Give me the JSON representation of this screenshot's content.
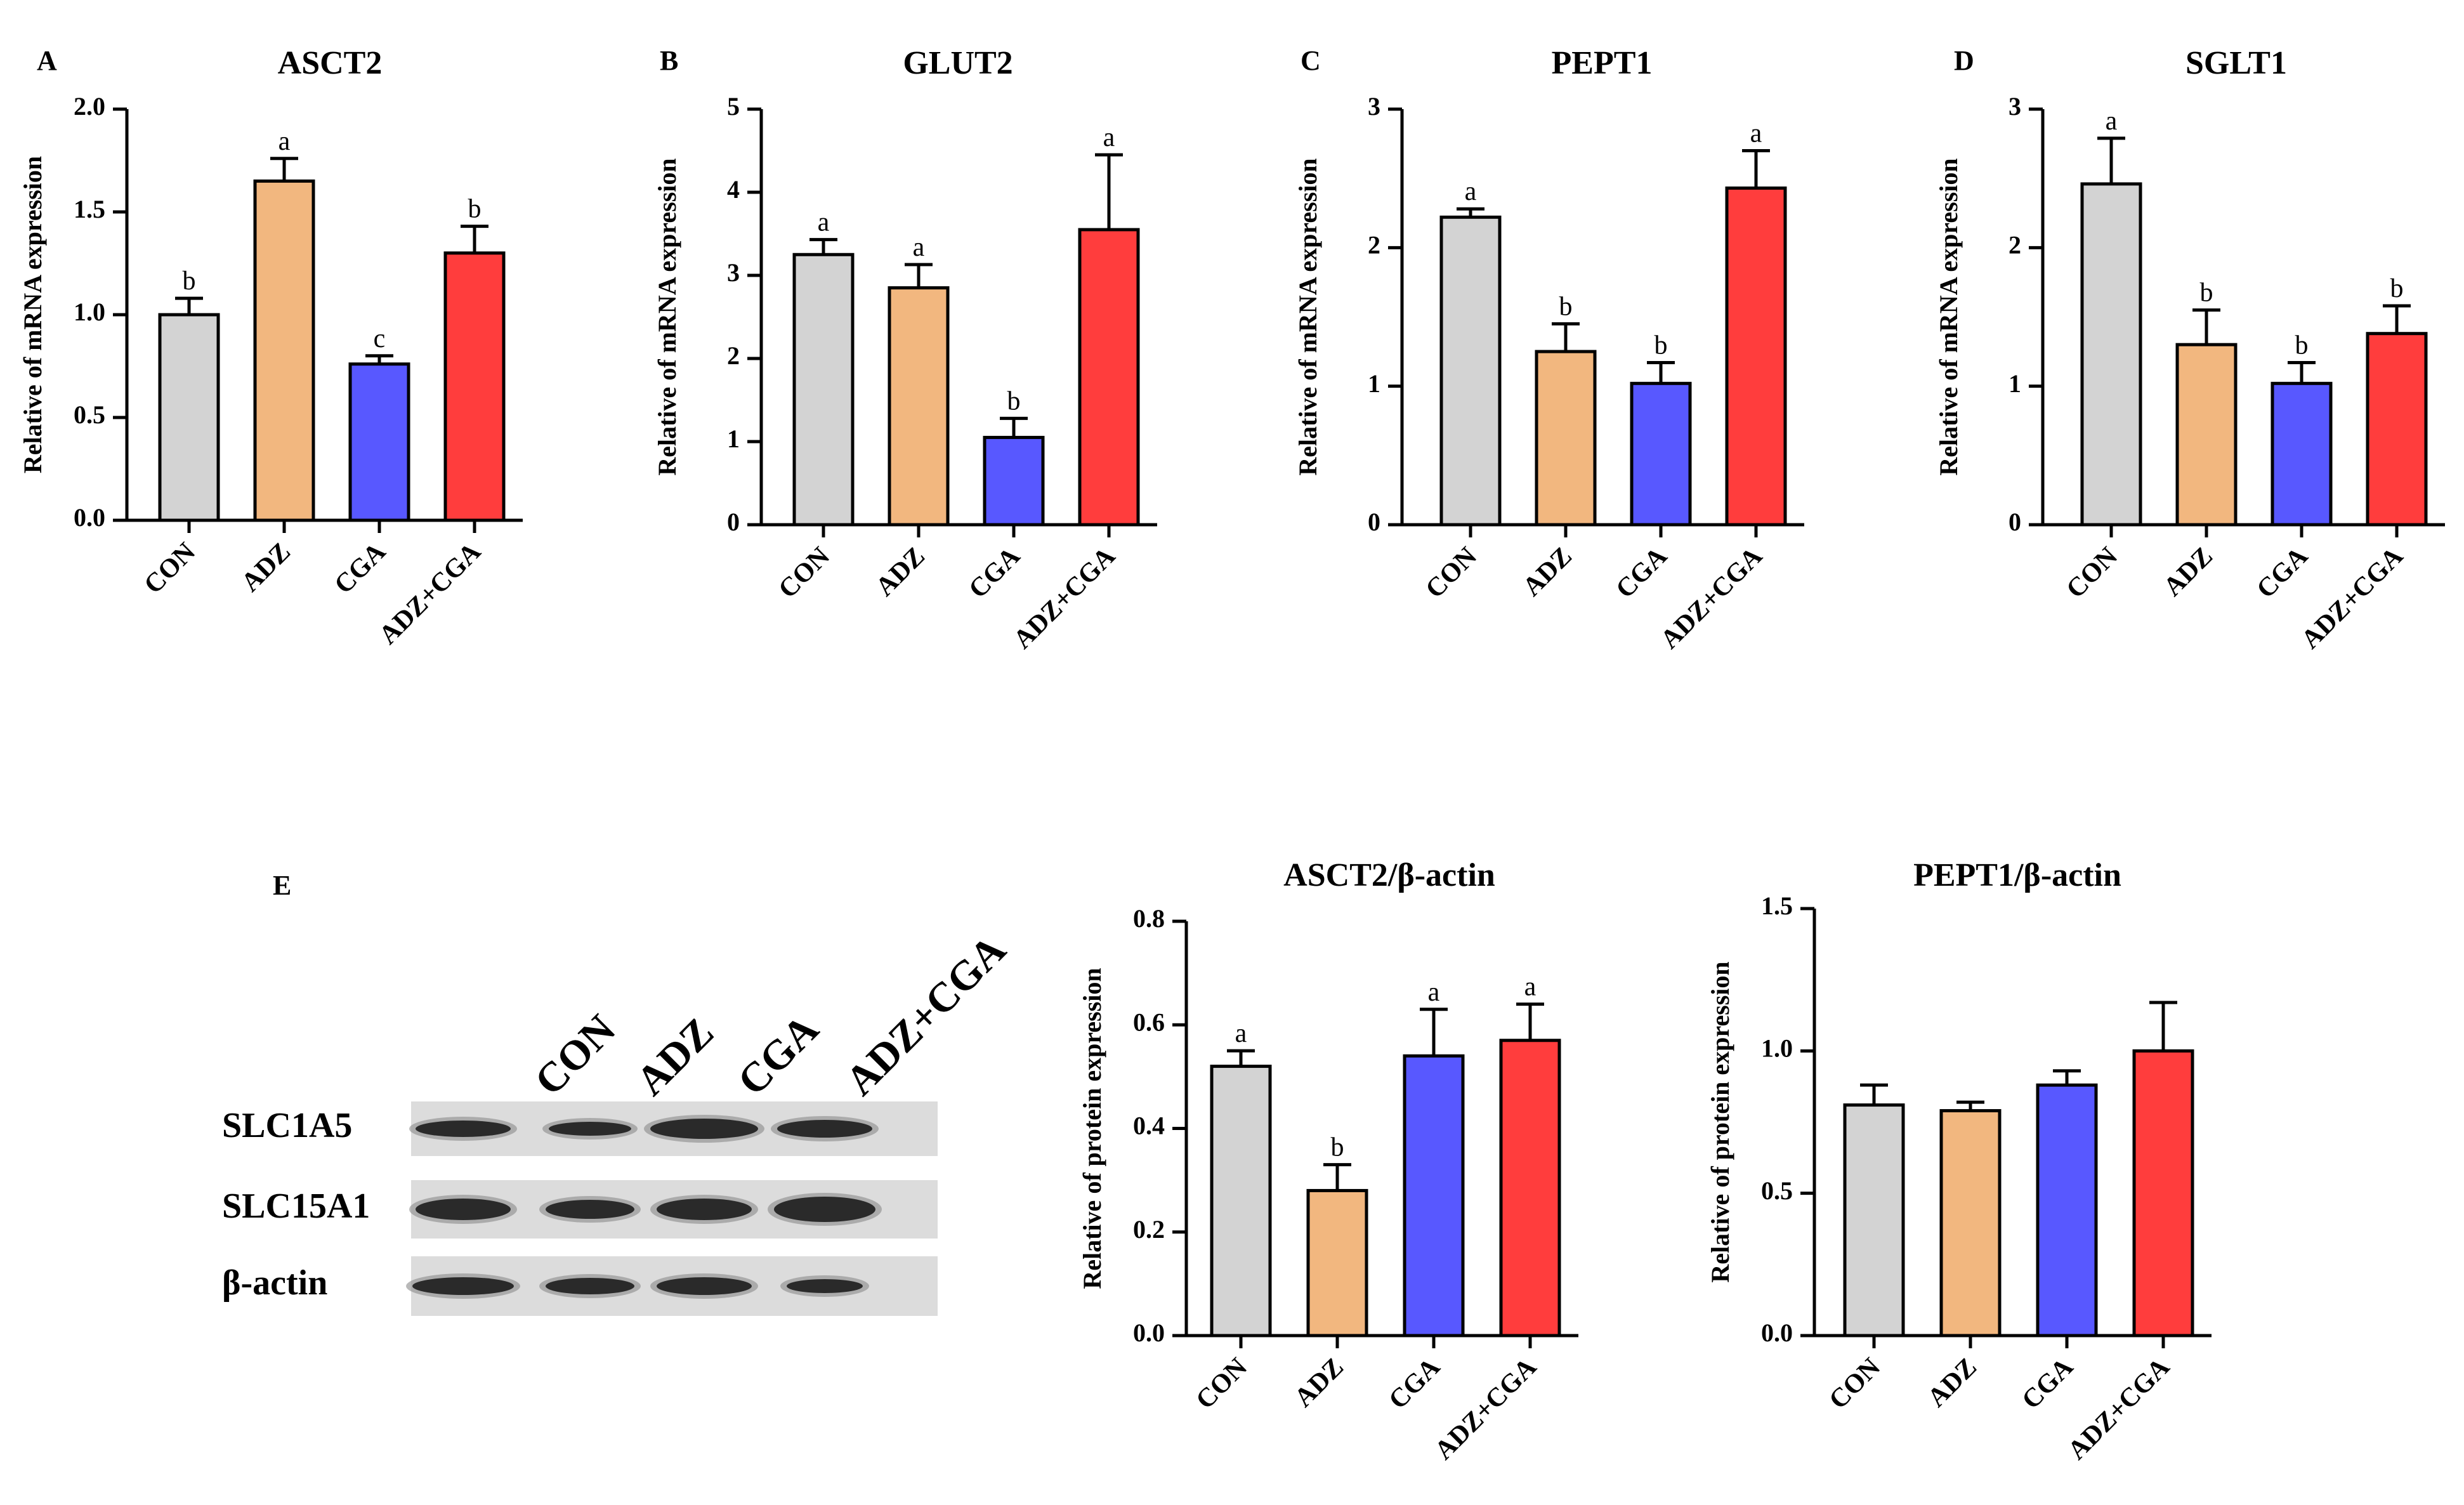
{
  "colors": {
    "CON": "#d3d3d3",
    "ADZ": "#f2b77f",
    "CGA": "#5858ff",
    "ADZ+CGA": "#ff3d3d"
  },
  "chart_data": [
    {
      "id": "A",
      "type": "bar",
      "letter": "A",
      "title": "ASCT2",
      "ylabel": "Relative of mRNA expression",
      "categories": [
        "CON",
        "ADZ",
        "CGA",
        "ADZ+CGA"
      ],
      "values": [
        1.0,
        1.65,
        0.76,
        1.3
      ],
      "errors": [
        0.08,
        0.11,
        0.04,
        0.13
      ],
      "labels": [
        "b",
        "a",
        "c",
        "b"
      ],
      "ylim": [
        0,
        2.0
      ],
      "yticks": [
        "0.0",
        "0.5",
        "1.0",
        "1.5",
        "2.0"
      ]
    },
    {
      "id": "B",
      "type": "bar",
      "letter": "B",
      "title": "GLUT2",
      "ylabel": "Relative of mRNA expression",
      "categories": [
        "CON",
        "ADZ",
        "CGA",
        "ADZ+CGA"
      ],
      "values": [
        3.25,
        2.85,
        1.05,
        3.55
      ],
      "errors": [
        0.18,
        0.28,
        0.23,
        0.9
      ],
      "labels": [
        "a",
        "a",
        "b",
        "a"
      ],
      "ylim": [
        0,
        5
      ],
      "yticks": [
        "0",
        "1",
        "2",
        "3",
        "4",
        "5"
      ]
    },
    {
      "id": "C",
      "type": "bar",
      "letter": "C",
      "title": "PEPT1",
      "ylabel": "Relative of mRNA expression",
      "categories": [
        "CON",
        "ADZ",
        "CGA",
        "ADZ+CGA"
      ],
      "values": [
        2.22,
        1.25,
        1.02,
        2.43
      ],
      "errors": [
        0.06,
        0.2,
        0.15,
        0.27
      ],
      "labels": [
        "a",
        "b",
        "b",
        "a"
      ],
      "ylim": [
        0,
        3
      ],
      "yticks": [
        "0",
        "1",
        "2",
        "3"
      ]
    },
    {
      "id": "D",
      "type": "bar",
      "letter": "D",
      "title": "SGLT1",
      "ylabel": "Relative of mRNA expression",
      "categories": [
        "CON",
        "ADZ",
        "CGA",
        "ADZ+CGA"
      ],
      "values": [
        2.46,
        1.3,
        1.02,
        1.38
      ],
      "errors": [
        0.33,
        0.25,
        0.15,
        0.2
      ],
      "labels": [
        "a",
        "b",
        "b",
        "b"
      ],
      "ylim": [
        0,
        3
      ],
      "yticks": [
        "0",
        "1",
        "2",
        "3"
      ]
    },
    {
      "id": "E1",
      "type": "bar",
      "title": "ASCT2/β-actin",
      "ylabel": "Relative of protein expression",
      "categories": [
        "CON",
        "ADZ",
        "CGA",
        "ADZ+CGA"
      ],
      "values": [
        0.52,
        0.28,
        0.54,
        0.57
      ],
      "errors": [
        0.03,
        0.05,
        0.09,
        0.07
      ],
      "labels": [
        "a",
        "b",
        "a",
        "a"
      ],
      "ylim": [
        0,
        0.8
      ],
      "yticks": [
        "0.0",
        "0.2",
        "0.4",
        "0.6",
        "0.8"
      ]
    },
    {
      "id": "E2",
      "type": "bar",
      "title": "PEPT1/β-actin",
      "ylabel": "Relative of protein expression",
      "categories": [
        "CON",
        "ADZ",
        "CGA",
        "ADZ+CGA"
      ],
      "values": [
        0.81,
        0.79,
        0.88,
        1.0
      ],
      "errors": [
        0.07,
        0.03,
        0.05,
        0.17
      ],
      "labels": [
        "",
        "",
        "",
        ""
      ],
      "ylim": [
        0,
        1.5
      ],
      "yticks": [
        "0.0",
        "0.5",
        "1.0",
        "1.5"
      ]
    }
  ],
  "blot": {
    "letter": "E",
    "columns": [
      "CON",
      "ADZ",
      "CGA",
      "ADZ+CGA"
    ],
    "rows": [
      "SLC1A5",
      "SLC15A1",
      "β-actin"
    ]
  }
}
